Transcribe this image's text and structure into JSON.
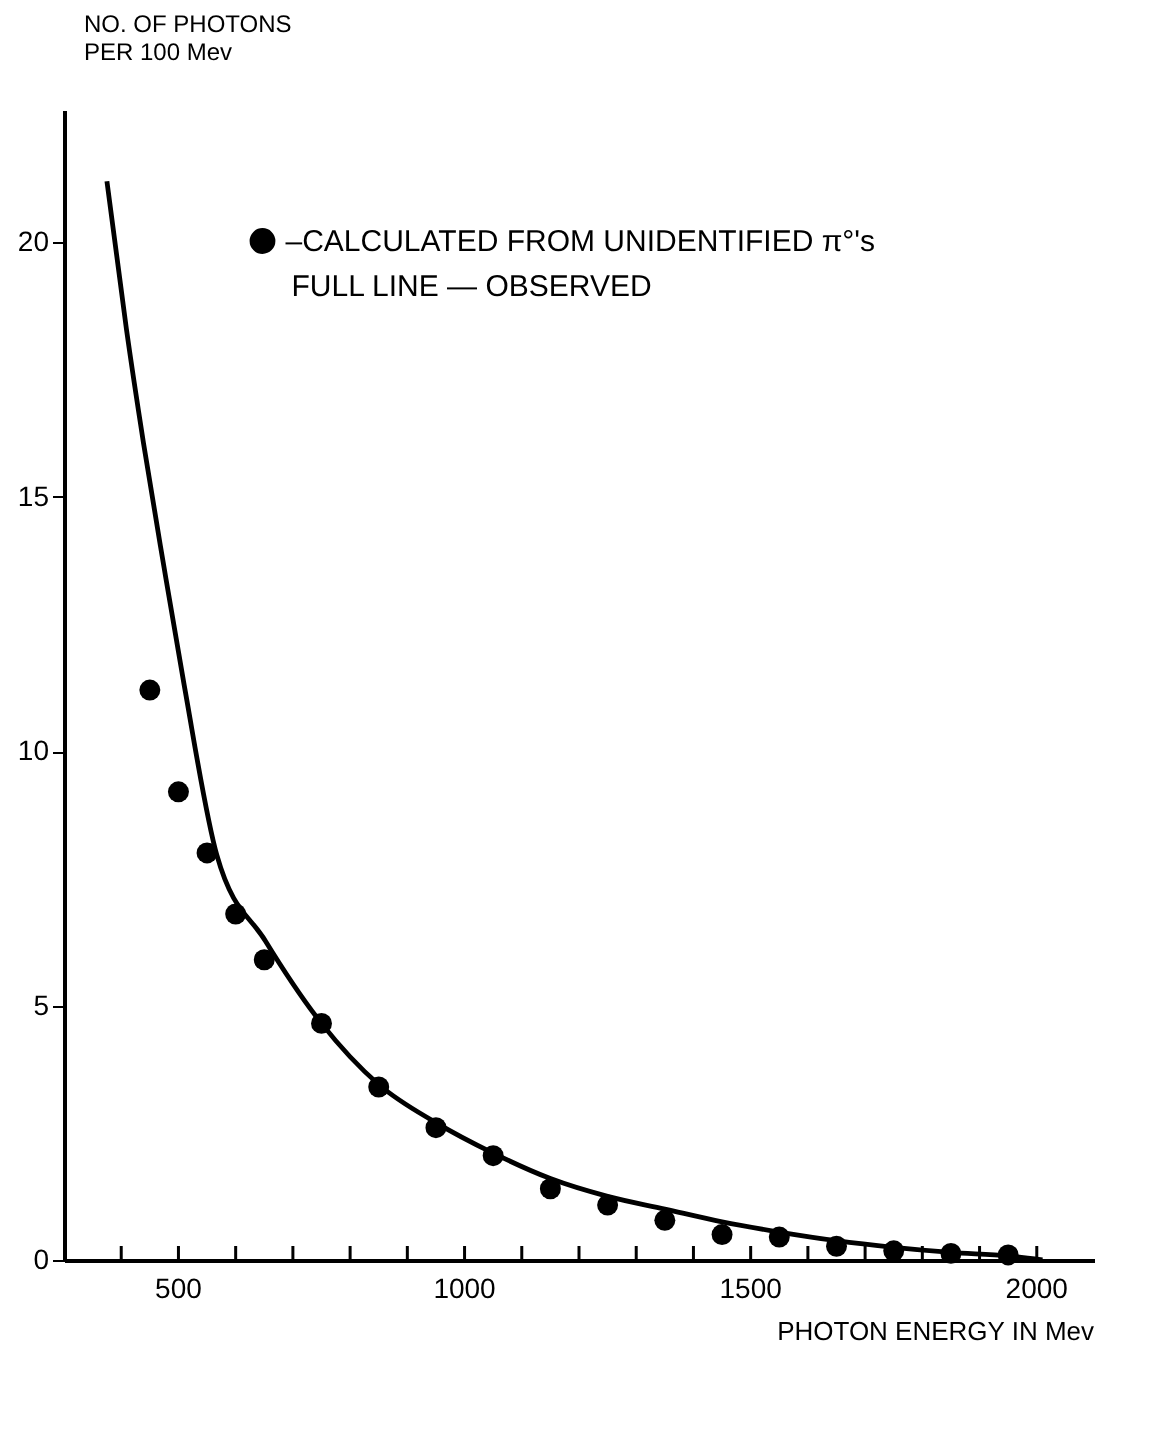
{
  "chart_data": {
    "type": "scatter",
    "xlabel": "PHOTON ENERGY IN Mev",
    "ylabel": "NO. OF PHOTONS\nPER 100 Mev",
    "xlim": [
      300,
      2100
    ],
    "ylim": [
      0,
      22.6
    ],
    "xticks": [
      {
        "value": 400,
        "label": null
      },
      500,
      {
        "value": 600,
        "label": null
      },
      {
        "value": 700,
        "label": null
      },
      {
        "value": 800,
        "label": null
      },
      {
        "value": 900,
        "label": null
      },
      1000,
      {
        "value": 1100,
        "label": null
      },
      {
        "value": 1200,
        "label": null
      },
      {
        "value": 1300,
        "label": null
      },
      {
        "value": 1400,
        "label": null
      },
      1500,
      {
        "value": 1600,
        "label": null
      },
      {
        "value": 1700,
        "label": null
      },
      {
        "value": 1800,
        "label": null
      },
      {
        "value": 1900,
        "label": null
      },
      2000
    ],
    "yticks": [
      0,
      5,
      10,
      15,
      20
    ],
    "grid": false,
    "legend": "top right",
    "marker": "circle",
    "annotations": [
      "FULL LINE — OBSERVED"
    ],
    "series": [
      {
        "name": "–CALCULATED FROM UNIDENTIFIED π°'s",
        "color": "#000000",
        "x": [
          450,
          500,
          550,
          600,
          650,
          750,
          850,
          950,
          1050,
          1150,
          1250,
          1350,
          1450,
          1550,
          1650,
          1750,
          1850,
          1950
        ],
        "values": [
          11.2,
          9.2,
          8.0,
          6.8,
          5.9,
          4.65,
          3.4,
          2.6,
          2.05,
          1.4,
          1.08,
          0.78,
          0.5,
          0.45,
          0.27,
          0.18,
          0.13,
          0.1
        ]
      },
      {
        "type": "line",
        "color": "#000000",
        "line_style": "solid",
        "marker": "none",
        "x": [
          375,
          409,
          439,
          475,
          510,
          567,
          652,
          750,
          850,
          950,
          1050,
          1150,
          1250,
          1350,
          1450,
          1550,
          1650,
          1750,
          1850,
          1950,
          2010
        ],
        "values": [
          21.2,
          18.3,
          16.05,
          13.6,
          11.3,
          7.96,
          6.27,
          4.65,
          3.45,
          2.7,
          2.1,
          1.6,
          1.25,
          1.0,
          0.75,
          0.55,
          0.38,
          0.25,
          0.15,
          0.08,
          0.0
        ]
      }
    ]
  }
}
